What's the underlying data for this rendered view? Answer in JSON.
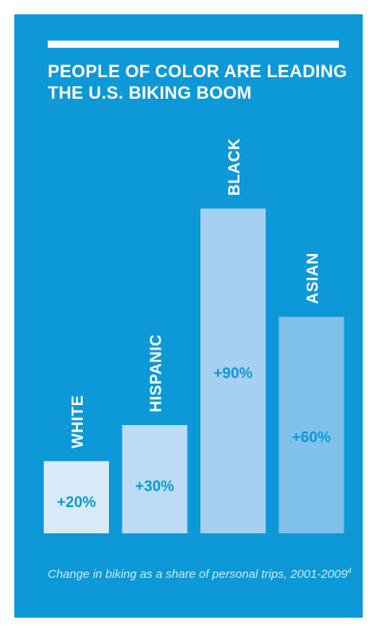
{
  "title": {
    "line1": "PEOPLE OF COLOR ARE LEADING",
    "line2": "THE U.S. BIKING BOOM"
  },
  "caption": {
    "text": "Change in biking as a share of personal trips, 2001-2009",
    "footnote": "4"
  },
  "colors": {
    "background": "#0d99d8",
    "label": "#ffffff",
    "value_text": "#0d99d8"
  },
  "chart_data": {
    "type": "bar",
    "title": "PEOPLE OF COLOR ARE LEADING THE U.S. BIKING BOOM",
    "categories": [
      "WHITE",
      "HISPANIC",
      "BLACK",
      "ASIAN"
    ],
    "values": [
      20,
      30,
      90,
      60
    ],
    "value_labels": [
      "+20%",
      "+30%",
      "+90%",
      "+60%"
    ],
    "bar_colors": [
      "#d7eaf8",
      "#bcdcf5",
      "#a6d0f1",
      "#80c1ec"
    ],
    "unit": "%",
    "ylim": [
      0,
      90
    ],
    "grid": false,
    "legend": "none",
    "category_label_placement": "vertical above each bar"
  }
}
